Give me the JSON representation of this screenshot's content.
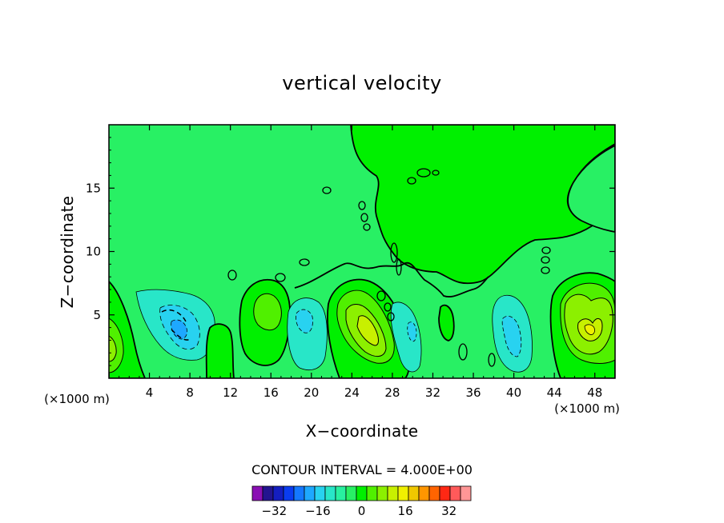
{
  "chart_data": {
    "type": "contour",
    "title": "vertical velocity",
    "xlabel": "X−coordinate",
    "ylabel": "Z−coordinate",
    "x_unit_left": "(×1000 m)",
    "x_unit_right": "(×1000 m)",
    "xlim": [
      0,
      50
    ],
    "ylim": [
      0,
      20
    ],
    "x_ticks": [
      4,
      8,
      12,
      16,
      20,
      24,
      28,
      32,
      36,
      40,
      44,
      48
    ],
    "x_tick_labels": [
      "4",
      "8",
      "12",
      "16",
      "20",
      "24",
      "28",
      "32",
      "36",
      "40",
      "44",
      "48"
    ],
    "y_ticks": [
      5,
      10,
      15
    ],
    "y_tick_labels": [
      "5",
      "10",
      "15"
    ],
    "contour_interval_text": "CONTOUR INTERVAL = 4.000E+00",
    "contour_interval": 4,
    "colorbar": {
      "levels": [
        -40,
        -36,
        -32,
        -28,
        -24,
        -20,
        -16,
        -12,
        -8,
        -4,
        0,
        4,
        8,
        12,
        16,
        20,
        24,
        28,
        32,
        36,
        40
      ],
      "colors": [
        "#8a0fb4",
        "#23148f",
        "#141ec0",
        "#0a3cf0",
        "#1478ff",
        "#1ea8ff",
        "#28d2f0",
        "#28e6c8",
        "#28f0a0",
        "#28f064",
        "#00f000",
        "#50f000",
        "#8cf000",
        "#c8f000",
        "#f0f000",
        "#f0c800",
        "#ff9600",
        "#ff6400",
        "#ff2814",
        "#ff5a5a",
        "#ff9696"
      ],
      "tick_values": [
        -32,
        -16,
        0,
        16,
        32
      ],
      "tick_labels": [
        "−32",
        "−16",
        "0",
        "16",
        "32"
      ]
    },
    "features": [
      {
        "kind": "updraft",
        "x": 25.5,
        "z": 4.2,
        "peak": 16
      },
      {
        "kind": "updraft",
        "x": 47,
        "z": 4.5,
        "peak": 16
      },
      {
        "kind": "updraft",
        "x": 15.5,
        "z": 5.5,
        "peak": 8
      },
      {
        "kind": "updraft",
        "x": 0.4,
        "z": 2.5,
        "peak": 8
      },
      {
        "kind": "downdraft",
        "x": 7,
        "z": 4.2,
        "peak": -12
      },
      {
        "kind": "downdraft",
        "x": 19.5,
        "z": 4.5,
        "peak": -8
      },
      {
        "kind": "downdraft",
        "x": 39.5,
        "z": 3.5,
        "peak": -8
      },
      {
        "kind": "downdraft",
        "x": 30,
        "z": 4,
        "peak": -4
      }
    ]
  }
}
